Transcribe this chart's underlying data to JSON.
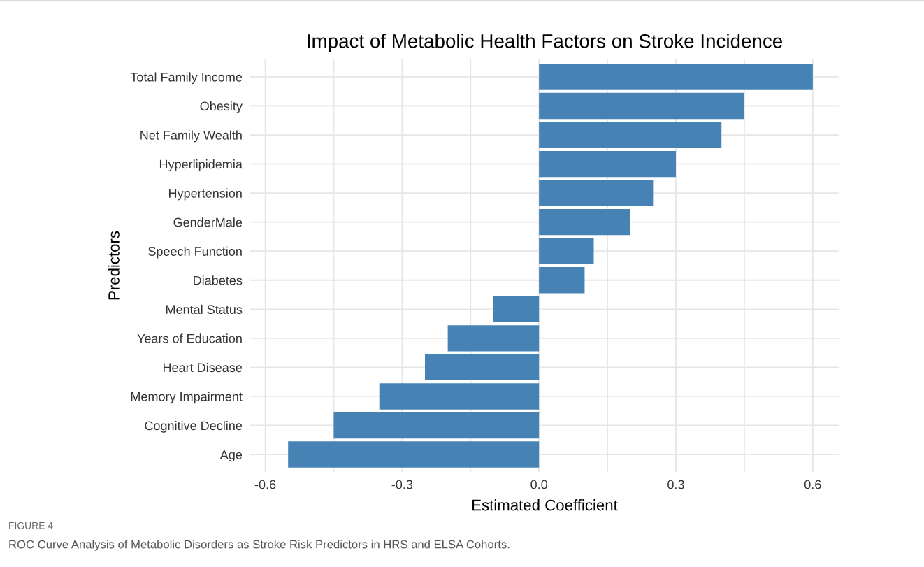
{
  "chart_data": {
    "type": "bar",
    "orientation": "horizontal",
    "title": "Impact of Metabolic Health Factors on Stroke Incidence",
    "xlabel": "Estimated Coefficient",
    "ylabel": "Predictors",
    "categories": [
      "Total Family Income",
      "Obesity",
      "Net Family Wealth",
      "Hyperlipidemia",
      "Hypertension",
      "GenderMale",
      "Speech Function",
      "Diabetes",
      "Mental Status",
      "Years of Education",
      "Heart Disease",
      "Memory Impairment",
      "Cognitive Decline",
      "Age"
    ],
    "values": [
      0.6,
      0.45,
      0.4,
      0.3,
      0.25,
      0.2,
      0.12,
      0.1,
      -0.1,
      -0.2,
      -0.25,
      -0.35,
      -0.45,
      -0.55
    ],
    "color": "#4682b4",
    "xlim": [
      -0.633,
      0.657
    ],
    "xticks": [
      {
        "value": -0.6,
        "label": "-0.6"
      },
      {
        "value": -0.45,
        "label": null
      },
      {
        "value": -0.3,
        "label": "-0.3"
      },
      {
        "value": -0.15,
        "label": null
      },
      {
        "value": 0.0,
        "label": "0.0"
      },
      {
        "value": 0.15,
        "label": null
      },
      {
        "value": 0.3,
        "label": "0.3"
      },
      {
        "value": 0.45,
        "label": null
      },
      {
        "value": 0.6,
        "label": "0.6"
      }
    ],
    "grid": true,
    "annotations": [
      "FIGURE 4",
      "ROC Curve Analysis of Metabolic Disorders as Stroke Risk Predictors in HRS and ELSA Cohorts."
    ]
  }
}
